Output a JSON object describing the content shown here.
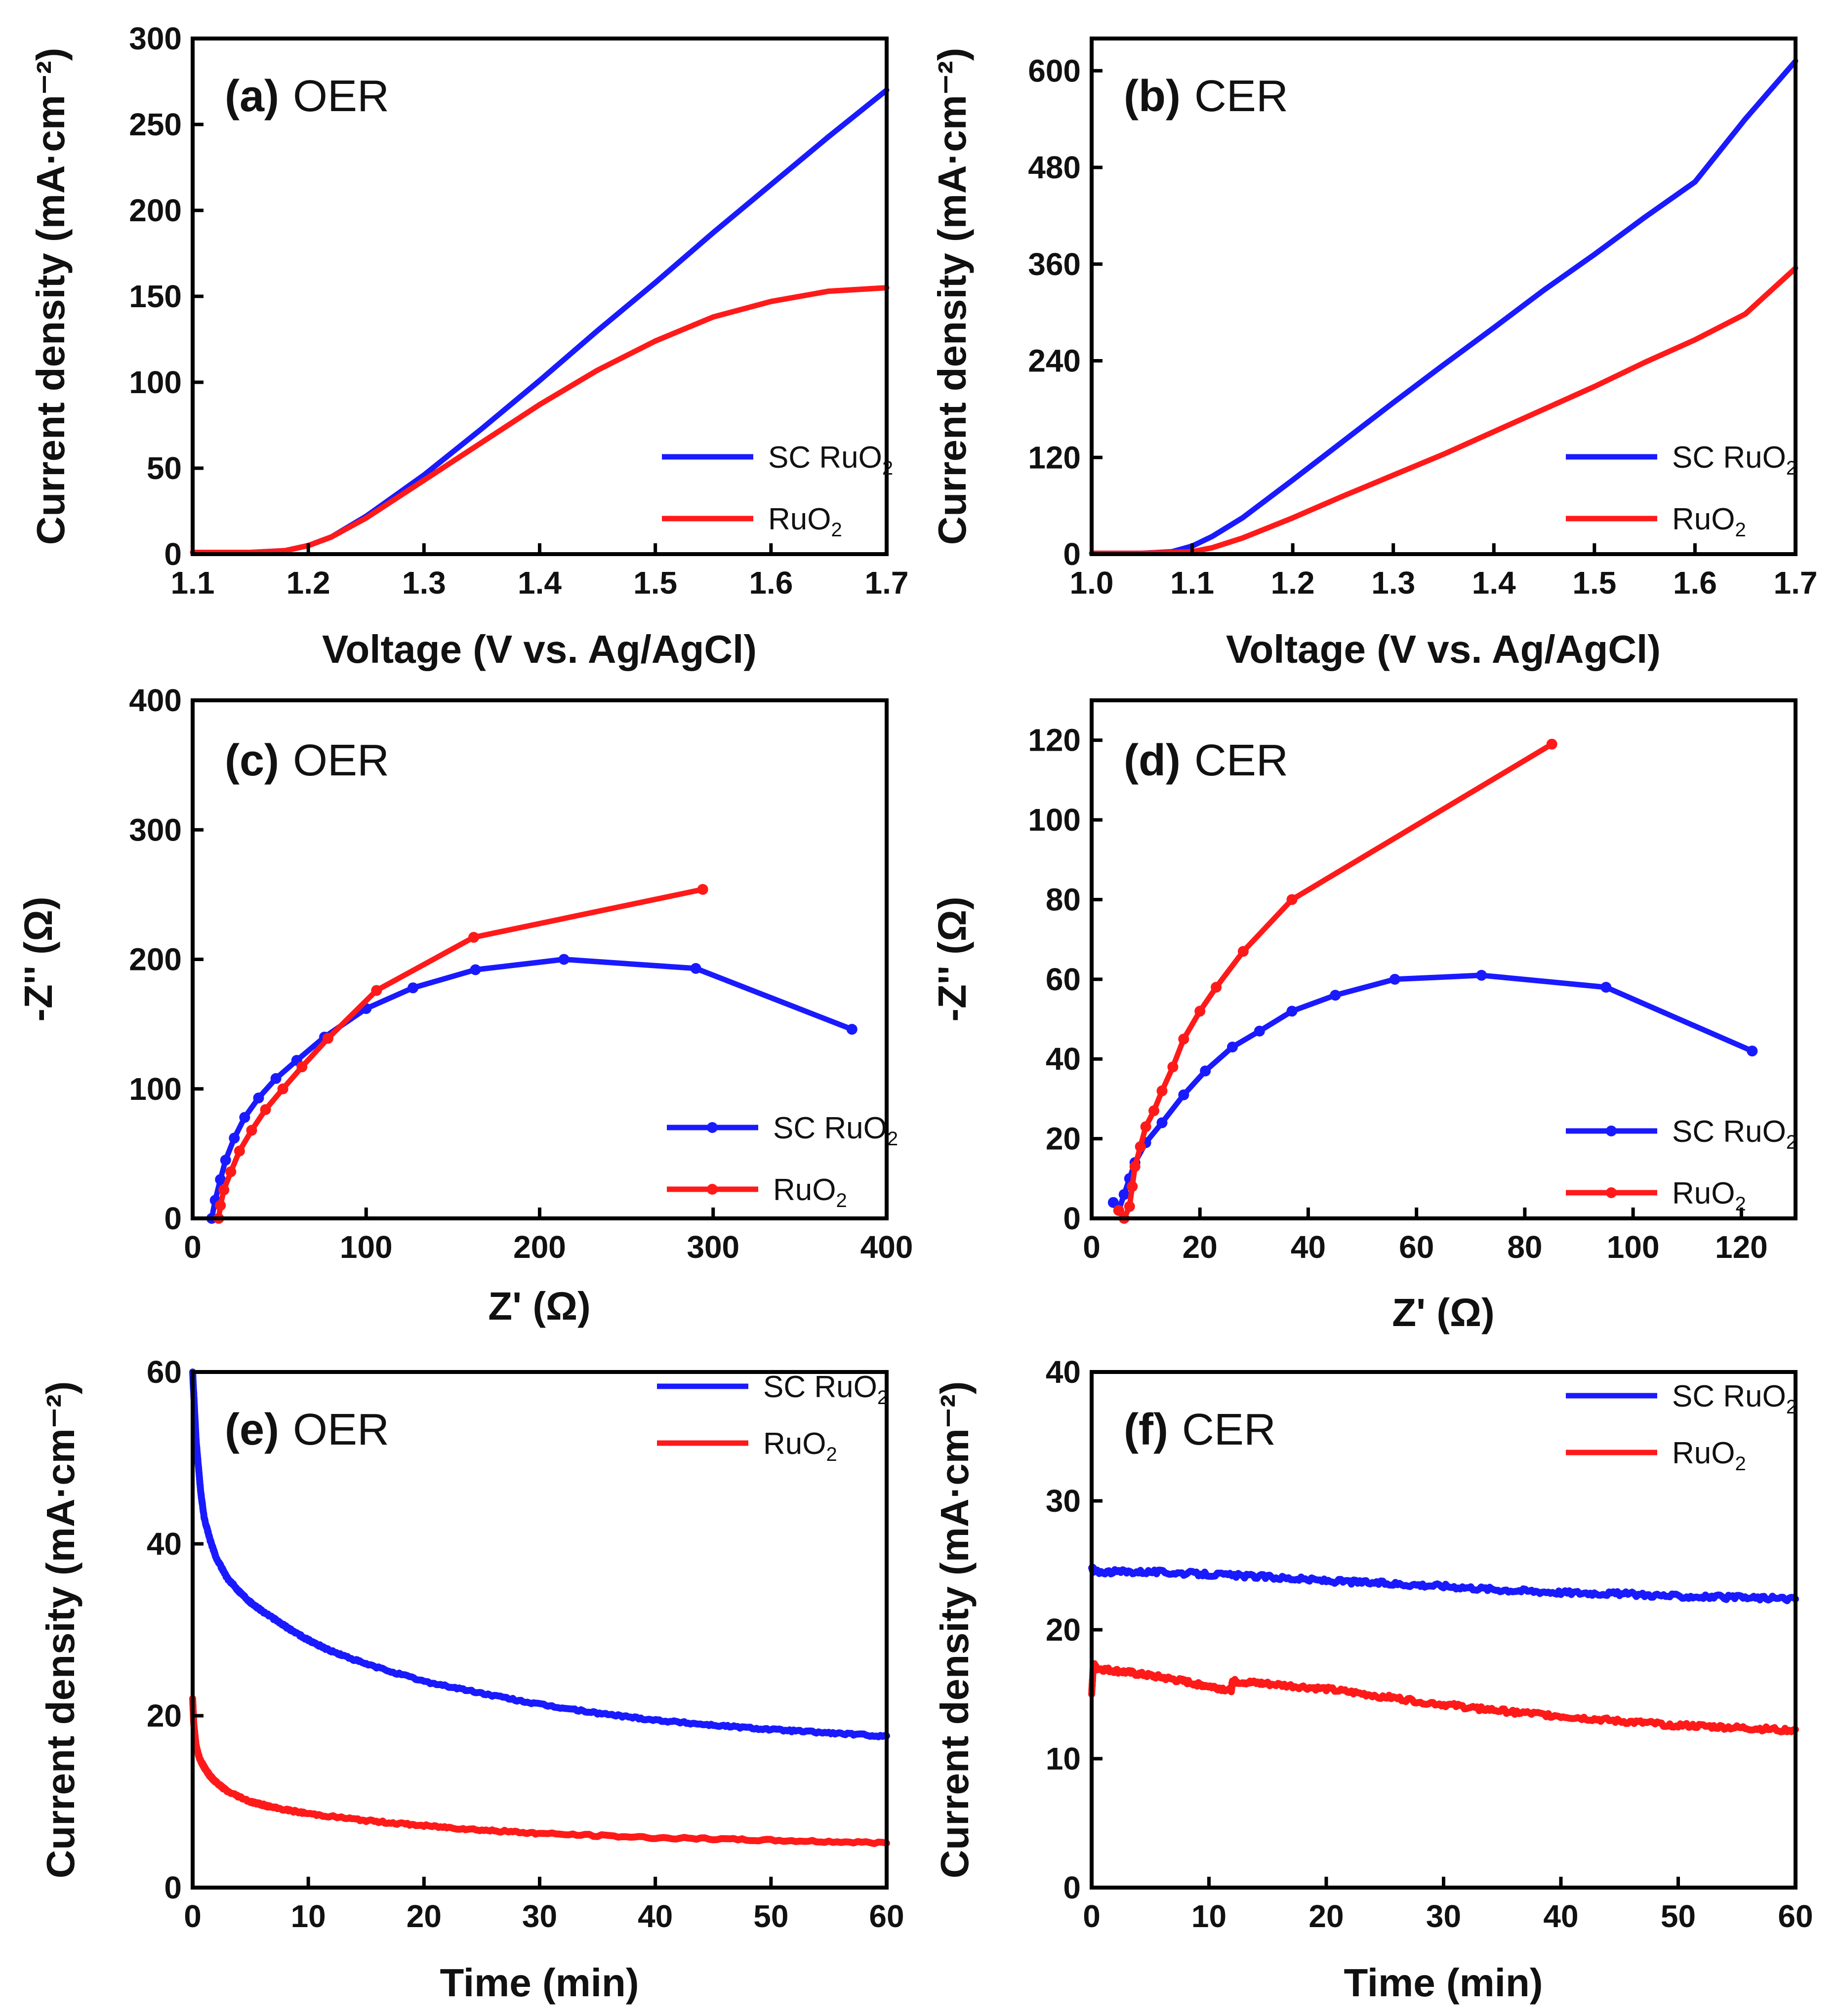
{
  "chart_data": [
    {
      "id": "a",
      "type": "line",
      "panel_label": "(a)",
      "reaction": "OER",
      "xlabel": "Voltage (V vs. Ag/AgCl)",
      "ylabel": "Current density (mA·cm⁻²)",
      "xlim": [
        1.1,
        1.7
      ],
      "ylim": [
        0,
        300
      ],
      "xticks": [
        "1.1",
        "1.2",
        "1.3",
        "1.4",
        "1.5",
        "1.6",
        "1.7"
      ],
      "yticks": [
        "0",
        "50",
        "100",
        "150",
        "200",
        "250",
        "300"
      ],
      "legend": {
        "position": "bottom-right",
        "entries": [
          "SC RuO2",
          "RuO2"
        ]
      },
      "series": [
        {
          "name": "SC RuO2",
          "color": "#1a1aff",
          "markers": false,
          "x": [
            1.1,
            1.15,
            1.18,
            1.2,
            1.22,
            1.25,
            1.3,
            1.35,
            1.4,
            1.45,
            1.5,
            1.55,
            1.6,
            1.65,
            1.7
          ],
          "y": [
            1,
            1,
            2,
            5,
            10,
            22,
            46,
            73,
            101,
            130,
            158,
            187,
            215,
            243,
            270
          ]
        },
        {
          "name": "RuO2",
          "color": "#ff1a1a",
          "markers": false,
          "x": [
            1.1,
            1.15,
            1.18,
            1.2,
            1.22,
            1.25,
            1.3,
            1.35,
            1.4,
            1.45,
            1.5,
            1.55,
            1.6,
            1.65,
            1.7
          ],
          "y": [
            1,
            1,
            2,
            5,
            10,
            21,
            43,
            65,
            87,
            107,
            124,
            138,
            147,
            153,
            155
          ]
        }
      ]
    },
    {
      "id": "b",
      "type": "line",
      "panel_label": "(b)",
      "reaction": "CER",
      "xlabel": "Voltage (V vs. Ag/AgCl)",
      "ylabel": "Current density (mA·cm⁻²)",
      "xlim": [
        1.0,
        1.7
      ],
      "ylim": [
        0,
        640
      ],
      "xticks": [
        "1.0",
        "1.1",
        "1.2",
        "1.3",
        "1.4",
        "1.5",
        "1.6",
        "1.7"
      ],
      "yticks": [
        "0",
        "120",
        "240",
        "360",
        "480",
        "600"
      ],
      "legend": {
        "position": "bottom-right",
        "entries": [
          "SC RuO2",
          "RuO2"
        ]
      },
      "series": [
        {
          "name": "SC RuO2",
          "color": "#1a1aff",
          "markers": false,
          "x": [
            1.0,
            1.05,
            1.08,
            1.1,
            1.12,
            1.15,
            1.2,
            1.25,
            1.3,
            1.35,
            1.4,
            1.45,
            1.5,
            1.55,
            1.6,
            1.65,
            1.7
          ],
          "y": [
            1,
            1,
            3,
            10,
            22,
            45,
            92,
            140,
            188,
            235,
            281,
            328,
            372,
            418,
            462,
            540,
            612
          ]
        },
        {
          "name": "RuO2",
          "color": "#ff1a1a",
          "markers": false,
          "x": [
            1.0,
            1.05,
            1.1,
            1.12,
            1.15,
            1.2,
            1.25,
            1.3,
            1.35,
            1.4,
            1.45,
            1.5,
            1.55,
            1.6,
            1.65,
            1.7
          ],
          "y": [
            1,
            1,
            3,
            8,
            20,
            45,
            72,
            98,
            124,
            152,
            180,
            208,
            238,
            266,
            298,
            355
          ]
        }
      ]
    },
    {
      "id": "c",
      "type": "scatter",
      "panel_label": "(c)",
      "reaction": "OER",
      "xlabel": "Z' (Ω)",
      "ylabel": "-Z'' (Ω)",
      "xlim": [
        0,
        400
      ],
      "ylim": [
        0,
        400
      ],
      "xticks": [
        "0",
        "100",
        "200",
        "300",
        "400"
      ],
      "yticks": [
        "0",
        "100",
        "200",
        "300",
        "400"
      ],
      "legend": {
        "position": "bottom-right",
        "entries": [
          "SC RuO2",
          "RuO2"
        ]
      },
      "series": [
        {
          "name": "SC RuO2",
          "color": "#1a1aff",
          "markers": true,
          "x": [
            11,
            13,
            16,
            19,
            24,
            30,
            38,
            48,
            60,
            76,
            100,
            127,
            163,
            214,
            290,
            380
          ],
          "y": [
            0,
            14,
            30,
            45,
            62,
            78,
            93,
            108,
            122,
            140,
            162,
            178,
            192,
            200,
            193,
            146
          ]
        },
        {
          "name": "RuO2",
          "color": "#ff1a1a",
          "markers": true,
          "x": [
            15,
            16,
            18,
            22,
            27,
            34,
            42,
            52,
            63,
            78,
            106,
            162,
            294
          ],
          "y": [
            0,
            10,
            22,
            36,
            52,
            68,
            84,
            100,
            117,
            139,
            176,
            217,
            254
          ]
        }
      ]
    },
    {
      "id": "d",
      "type": "scatter",
      "panel_label": "(d)",
      "reaction": "CER",
      "xlabel": "Z' (Ω)",
      "ylabel": "-Z'' (Ω)",
      "xlim": [
        0,
        130
      ],
      "ylim": [
        0,
        130
      ],
      "xticks": [
        "0",
        "20",
        "40",
        "60",
        "80",
        "100",
        "120"
      ],
      "yticks": [
        "0",
        "20",
        "40",
        "60",
        "80",
        "100",
        "120"
      ],
      "legend": {
        "position": "bottom-right",
        "entries": [
          "SC RuO2",
          "RuO2"
        ]
      },
      "series": [
        {
          "name": "SC RuO2",
          "color": "#1a1aff",
          "markers": true,
          "x": [
            4,
            5,
            6,
            7,
            8,
            10,
            13,
            17,
            21,
            26,
            31,
            37,
            45,
            56,
            72,
            95,
            122
          ],
          "y": [
            4,
            2,
            6,
            10,
            14,
            19,
            24,
            31,
            37,
            43,
            47,
            52,
            56,
            60,
            61,
            58,
            42
          ]
        },
        {
          "name": "RuO2",
          "color": "#ff1a1a",
          "markers": true,
          "x": [
            5,
            6,
            7,
            7.5,
            8,
            9,
            10,
            11.5,
            13,
            15,
            17,
            20,
            23,
            28,
            37,
            85
          ],
          "y": [
            2,
            0,
            3,
            8,
            13,
            18,
            23,
            27,
            32,
            38,
            45,
            52,
            58,
            67,
            80,
            119
          ]
        }
      ]
    },
    {
      "id": "e",
      "type": "line",
      "panel_label": "(e)",
      "reaction": "OER",
      "xlabel": "Time (min)",
      "ylabel": "Current density (mA·cm⁻²)",
      "xlim": [
        0,
        60
      ],
      "ylim": [
        0,
        60
      ],
      "xticks": [
        "0",
        "10",
        "20",
        "30",
        "40",
        "50",
        "60"
      ],
      "yticks": [
        "0",
        "20",
        "40",
        "60"
      ],
      "legend": {
        "position": "top-right",
        "entries": [
          "SC RuO2",
          "RuO2"
        ]
      },
      "series": [
        {
          "name": "SC RuO2",
          "color": "#1a1aff",
          "markers": false,
          "x": [
            0,
            0.3,
            0.7,
            1,
            1.5,
            2,
            3,
            4,
            5,
            6,
            8,
            10,
            12,
            15,
            20,
            25,
            30,
            35,
            40,
            45,
            50,
            55,
            60
          ],
          "y": [
            60,
            52,
            46,
            43,
            40.5,
            38.5,
            36,
            34.5,
            33.2,
            32.2,
            30.4,
            28.8,
            27.5,
            26,
            24,
            22.6,
            21.3,
            20.3,
            19.5,
            18.9,
            18.4,
            18,
            17.6
          ]
        },
        {
          "name": "RuO2",
          "color": "#ff1a1a",
          "markers": false,
          "x": [
            0,
            0.1,
            0.3,
            0.6,
            1,
            1.5,
            2,
            3,
            5,
            7,
            10,
            15,
            20,
            25,
            30,
            40,
            50,
            60
          ],
          "y": [
            22,
            19,
            16.5,
            15,
            14,
            13,
            12.3,
            11.2,
            10,
            9.3,
            8.6,
            7.8,
            7.2,
            6.7,
            6.3,
            5.8,
            5.5,
            5.2
          ]
        }
      ]
    },
    {
      "id": "f",
      "type": "line",
      "panel_label": "(f)",
      "reaction": "CER",
      "xlabel": "Time (min)",
      "ylabel": "Current density (mA·cm⁻²)",
      "xlim": [
        0,
        60
      ],
      "ylim": [
        0,
        40
      ],
      "xticks": [
        "0",
        "10",
        "20",
        "30",
        "40",
        "50",
        "60"
      ],
      "yticks": [
        "0",
        "10",
        "20",
        "30",
        "40"
      ],
      "legend": {
        "position": "top-right",
        "entries": [
          "SC RuO2",
          "RuO2"
        ]
      },
      "series": [
        {
          "name": "SC RuO2",
          "color": "#1a1aff",
          "markers": false,
          "x": [
            0,
            0.3,
            5,
            10,
            15,
            20,
            25,
            30,
            35,
            40,
            45,
            50,
            55,
            60
          ],
          "y": [
            24.8,
            24.5,
            24.5,
            24.3,
            24.1,
            23.8,
            23.6,
            23.4,
            23.1,
            22.9,
            22.8,
            22.6,
            22.5,
            22.4
          ]
        },
        {
          "name": "RuO2",
          "color": "#ff1a1a",
          "markers": false,
          "x": [
            0,
            0.15,
            0.4,
            3,
            6,
            9,
            11.9,
            12,
            15,
            20,
            25,
            30,
            35,
            40,
            45,
            50,
            55,
            60
          ],
          "y": [
            15,
            17.3,
            17,
            16.7,
            16.3,
            15.8,
            15.3,
            16,
            15.8,
            15.4,
            14.8,
            14.2,
            13.7,
            13.3,
            12.9,
            12.6,
            12.4,
            12.2
          ]
        }
      ]
    }
  ]
}
